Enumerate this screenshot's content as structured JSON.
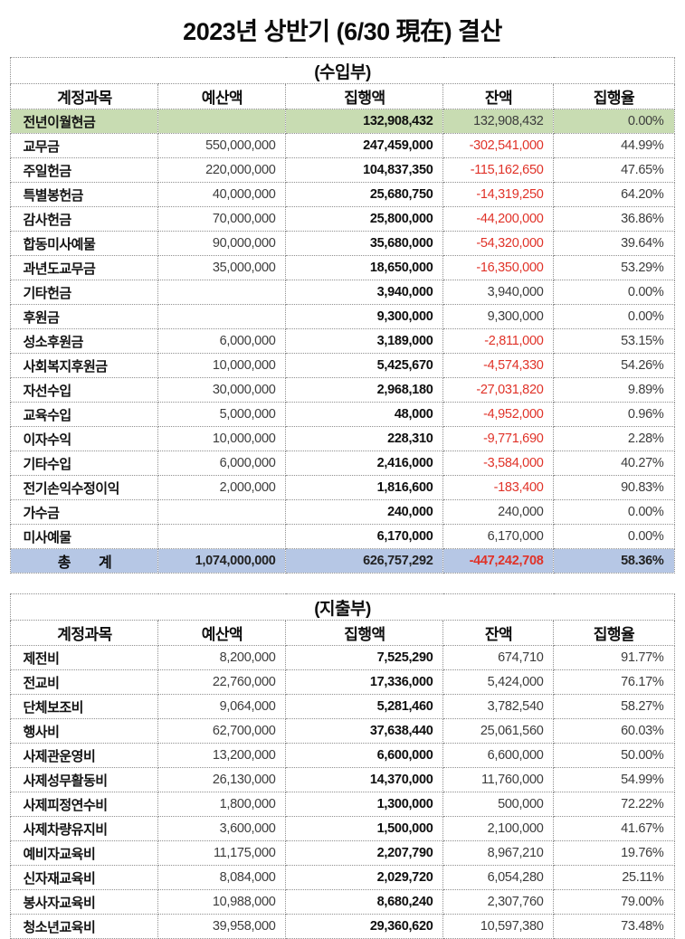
{
  "title": "2023년 상반기 (6/30 現在) 결산",
  "colors": {
    "carryover_row_green": "#c8dcb2",
    "total_row_blue": "#b6c7e5",
    "negative_red": "#e03228"
  },
  "income_table": {
    "section_title": "(수입부)",
    "columns": [
      "계정과목",
      "예산액",
      "집행액",
      "잔액",
      "집행율"
    ],
    "rows": [
      {
        "account": "전년이월현금",
        "budget": "",
        "executed": "132,908,432",
        "balance": "132,908,432",
        "rate": "0.00%",
        "highlight": "green"
      },
      {
        "account": "교무금",
        "budget": "550,000,000",
        "executed": "247,459,000",
        "balance": "-302,541,000",
        "rate": "44.99%"
      },
      {
        "account": "주일헌금",
        "budget": "220,000,000",
        "executed": "104,837,350",
        "balance": "-115,162,650",
        "rate": "47.65%"
      },
      {
        "account": "특별봉헌금",
        "budget": "40,000,000",
        "executed": "25,680,750",
        "balance": "-14,319,250",
        "rate": "64.20%"
      },
      {
        "account": "감사헌금",
        "budget": "70,000,000",
        "executed": "25,800,000",
        "balance": "-44,200,000",
        "rate": "36.86%"
      },
      {
        "account": "합동미사예물",
        "budget": "90,000,000",
        "executed": "35,680,000",
        "balance": "-54,320,000",
        "rate": "39.64%"
      },
      {
        "account": "과년도교무금",
        "budget": "35,000,000",
        "executed": "18,650,000",
        "balance": "-16,350,000",
        "rate": "53.29%"
      },
      {
        "account": "기타헌금",
        "budget": "",
        "executed": "3,940,000",
        "balance": "3,940,000",
        "rate": "0.00%"
      },
      {
        "account": "후원금",
        "budget": "",
        "executed": "9,300,000",
        "balance": "9,300,000",
        "rate": "0.00%"
      },
      {
        "account": "성소후원금",
        "budget": "6,000,000",
        "executed": "3,189,000",
        "balance": "-2,811,000",
        "rate": "53.15%"
      },
      {
        "account": "사회복지후원금",
        "budget": "10,000,000",
        "executed": "5,425,670",
        "balance": "-4,574,330",
        "rate": "54.26%"
      },
      {
        "account": "자선수입",
        "budget": "30,000,000",
        "executed": "2,968,180",
        "balance": "-27,031,820",
        "rate": "9.89%"
      },
      {
        "account": "교육수입",
        "budget": "5,000,000",
        "executed": "48,000",
        "balance": "-4,952,000",
        "rate": "0.96%"
      },
      {
        "account": "이자수익",
        "budget": "10,000,000",
        "executed": "228,310",
        "balance": "-9,771,690",
        "rate": "2.28%"
      },
      {
        "account": "기타수입",
        "budget": "6,000,000",
        "executed": "2,416,000",
        "balance": "-3,584,000",
        "rate": "40.27%"
      },
      {
        "account": "전기손익수정이익",
        "budget": "2,000,000",
        "executed": "1,816,600",
        "balance": "-183,400",
        "rate": "90.83%"
      },
      {
        "account": "가수금",
        "budget": "",
        "executed": "240,000",
        "balance": "240,000",
        "rate": "0.00%"
      },
      {
        "account": "미사예물",
        "budget": "",
        "executed": "6,170,000",
        "balance": "6,170,000",
        "rate": "0.00%"
      },
      {
        "account": "총　　계",
        "budget": "1,074,000,000",
        "executed": "626,757,292",
        "balance": "-447,242,708",
        "rate": "58.36%",
        "highlight": "blue",
        "total": true
      }
    ]
  },
  "expense_table": {
    "section_title": "(지출부)",
    "columns": [
      "계정과목",
      "예산액",
      "집행액",
      "잔액",
      "집행율"
    ],
    "rows": [
      {
        "account": "제전비",
        "budget": "8,200,000",
        "executed": "7,525,290",
        "balance": "674,710",
        "rate": "91.77%"
      },
      {
        "account": "전교비",
        "budget": "22,760,000",
        "executed": "17,336,000",
        "balance": "5,424,000",
        "rate": "76.17%"
      },
      {
        "account": "단체보조비",
        "budget": "9,064,000",
        "executed": "5,281,460",
        "balance": "3,782,540",
        "rate": "58.27%"
      },
      {
        "account": "행사비",
        "budget": "62,700,000",
        "executed": "37,638,440",
        "balance": "25,061,560",
        "rate": "60.03%"
      },
      {
        "account": "사제관운영비",
        "budget": "13,200,000",
        "executed": "6,600,000",
        "balance": "6,600,000",
        "rate": "50.00%"
      },
      {
        "account": "사제성무활동비",
        "budget": "26,130,000",
        "executed": "14,370,000",
        "balance": "11,760,000",
        "rate": "54.99%"
      },
      {
        "account": "사제피정연수비",
        "budget": "1,800,000",
        "executed": "1,300,000",
        "balance": "500,000",
        "rate": "72.22%"
      },
      {
        "account": "사제차량유지비",
        "budget": "3,600,000",
        "executed": "1,500,000",
        "balance": "2,100,000",
        "rate": "41.67%"
      },
      {
        "account": "예비자교육비",
        "budget": "11,175,000",
        "executed": "2,207,790",
        "balance": "8,967,210",
        "rate": "19.76%"
      },
      {
        "account": "신자재교육비",
        "budget": "8,084,000",
        "executed": "2,029,720",
        "balance": "6,054,280",
        "rate": "25.11%"
      },
      {
        "account": "봉사자교육비",
        "budget": "10,988,000",
        "executed": "8,680,240",
        "balance": "2,307,760",
        "rate": "79.00%"
      },
      {
        "account": "청소년교육비",
        "budget": "39,958,000",
        "executed": "29,360,620",
        "balance": "10,597,380",
        "rate": "73.48%"
      }
    ]
  }
}
